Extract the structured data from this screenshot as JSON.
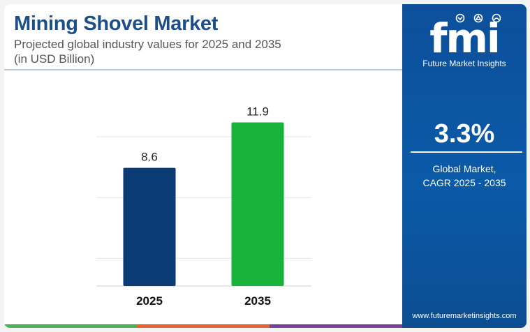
{
  "header": {
    "title": "Mining Shovel Market",
    "subtitle_line1": "Projected global industry values for 2025 and 2035",
    "subtitle_line2": "(in USD Billion)"
  },
  "chart_data": {
    "type": "bar",
    "title": "Mining Shovel Market",
    "subtitle": "Projected global industry values for 2025 and 2035 (in USD Billion)",
    "categories": [
      "2025",
      "2035"
    ],
    "values": [
      8.6,
      11.9
    ],
    "labels": [
      "8.6",
      "11.9"
    ],
    "colors": [
      "#0b3b75",
      "#19b23a"
    ],
    "ylim": [
      0,
      13.4
    ],
    "grid": true,
    "xlabel": "",
    "ylabel": ""
  },
  "panel": {
    "logo_text": "fmi",
    "brand": "Future Market Insights",
    "cagr_value": "3.3%",
    "cagr_label_line1": "Global Market,",
    "cagr_label_line2": "CAGR 2025 - 2035",
    "website": "www.futuremarketinsights.com"
  },
  "colors": {
    "title": "#1d4e89",
    "panel": "#0a5aa8",
    "bar_2025": "#0b3b75",
    "bar_2035": "#19b23a",
    "bottom_bar": [
      "#4caf50",
      "#e8632b",
      "#7b3fa0"
    ]
  }
}
